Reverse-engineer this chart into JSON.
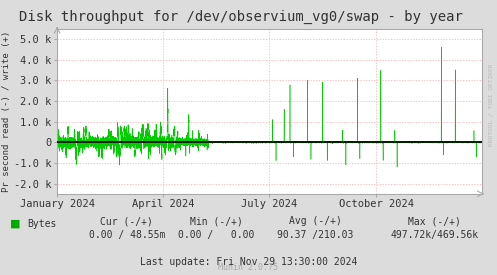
{
  "title": "Disk throughput for /dev/observium_vg0/swap - by year",
  "ylabel": "Pr second read (-) / write (+)",
  "bg_color": "#dcdcdc",
  "plot_bg_color": "#ffffff",
  "grid_color": "#ffaaaa",
  "line_color": "#00cc00",
  "zero_line_color": "#000000",
  "ylim": [
    -2500,
    5500
  ],
  "yticks": [
    -2000,
    -1000,
    0,
    1000,
    2000,
    3000,
    4000,
    5000
  ],
  "ytick_labels": [
    "-2.0 k",
    "-1.0 k",
    "0",
    "1.0 k",
    "2.0 k",
    "3.0 k",
    "4.0 k",
    "5.0 k"
  ],
  "title_fontsize": 10,
  "tick_fontsize": 7.5,
  "legend_text": "Bytes",
  "legend_color": "#00aa00",
  "watermark": "RRDTOOL / TOBI OETIKER",
  "cur_label": "Cur (-/+)",
  "min_label": "Min (-/+)",
  "avg_label": "Avg (-/+)",
  "max_label": "Max (-/+)",
  "cur_val": "0.00 / 48.55m",
  "min_val": "0.00 /   0.00",
  "avg_val": "90.37 /210.03",
  "max_val": "497.72k/469.56k",
  "last_update": "Last update: Fri Nov 29 13:30:00 2024",
  "munin_text": "Munin 2.0.75"
}
